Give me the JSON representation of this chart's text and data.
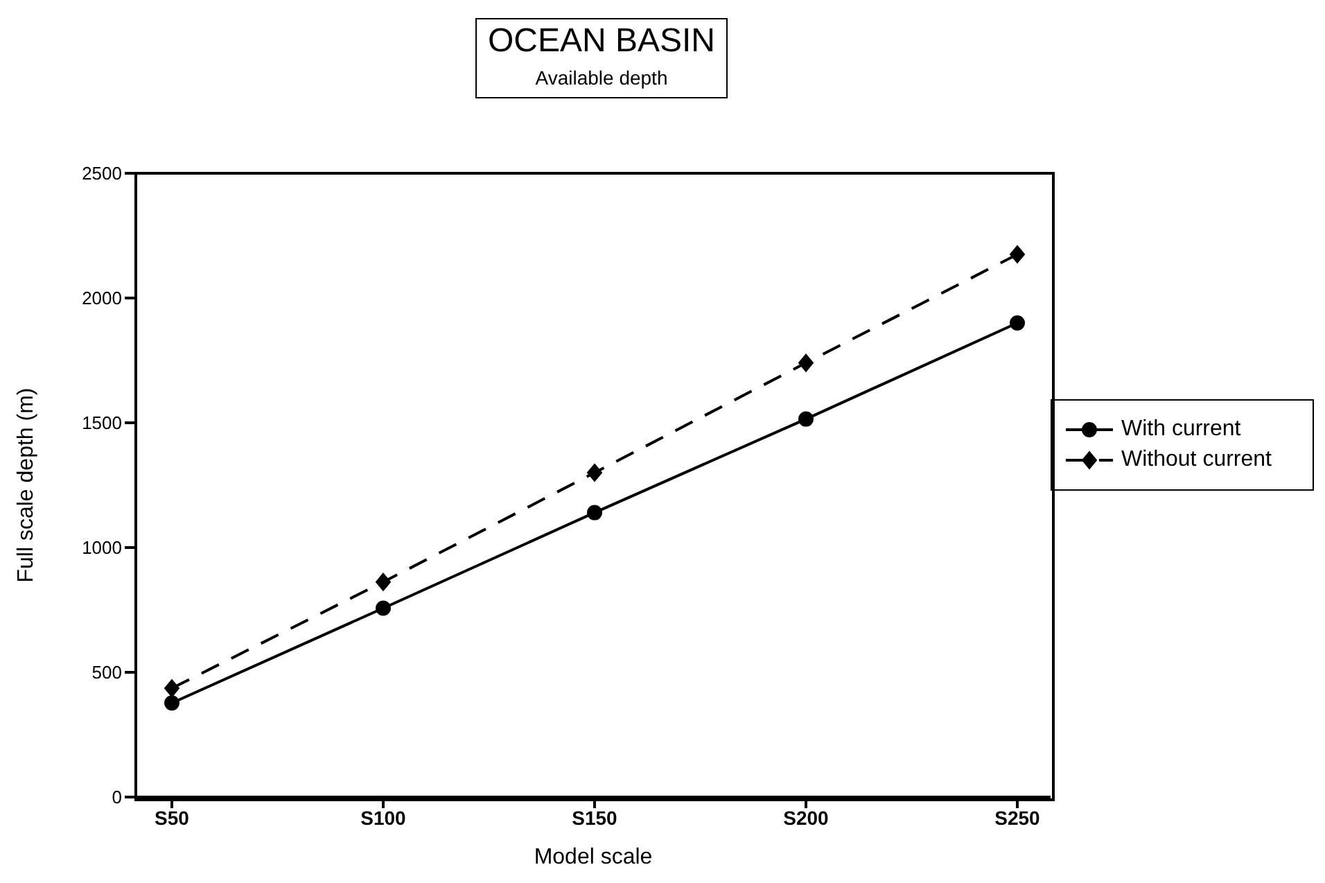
{
  "chart_data": {
    "type": "line",
    "title": "OCEAN BASIN",
    "subtitle": "Available depth",
    "xlabel": "Model scale",
    "ylabel": "Full scale depth (m)",
    "categories": [
      "S50",
      "S100",
      "S150",
      "S200",
      "S250"
    ],
    "series": [
      {
        "name": "With current",
        "color": "#000000",
        "values": [
          377,
          757,
          1140,
          1515,
          1900
        ],
        "marker": "circle",
        "line_style": "solid"
      },
      {
        "name": "Without current",
        "color": "#000000",
        "values": [
          436,
          862,
          1300,
          1740,
          2175
        ],
        "marker": "diamond",
        "line_style": "dashed"
      }
    ],
    "ylim": [
      0,
      2500
    ],
    "yticks": [
      0,
      500,
      1000,
      1500,
      2000,
      2500
    ],
    "grid": false,
    "legend": "right"
  }
}
